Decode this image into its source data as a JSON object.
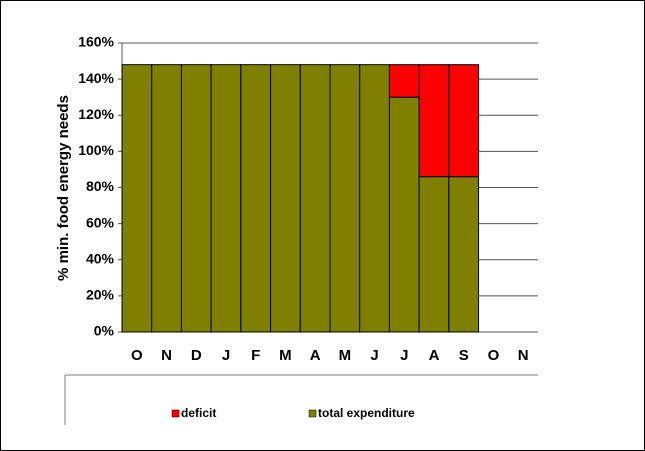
{
  "chart_data": {
    "type": "stacked_bar",
    "y_label": "% min. food energy needs",
    "categories": [
      "O",
      "N",
      "D",
      "J",
      "F",
      "M",
      "A",
      "M",
      "J",
      "J",
      "A",
      "S",
      "O",
      "N"
    ],
    "series": [
      {
        "name": "total expenditure",
        "color": "#808000",
        "values": [
          148,
          148,
          148,
          148,
          148,
          148,
          148,
          148,
          148,
          130,
          86,
          86,
          null,
          null
        ]
      },
      {
        "name": "deficit",
        "color": "#ff0000",
        "values": [
          null,
          null,
          null,
          null,
          null,
          null,
          null,
          null,
          null,
          18,
          62,
          62,
          null,
          null
        ]
      }
    ],
    "ylim": [
      0,
      160
    ],
    "yticks": [
      {
        "value": 0,
        "label": "0%"
      },
      {
        "value": 20,
        "label": "20%"
      },
      {
        "value": 40,
        "label": "40%"
      },
      {
        "value": 60,
        "label": "60%"
      },
      {
        "value": 80,
        "label": "80%"
      },
      {
        "value": 100,
        "label": "100%"
      },
      {
        "value": 120,
        "label": "120%"
      },
      {
        "value": 140,
        "label": "140%"
      },
      {
        "value": 160,
        "label": "160%"
      }
    ],
    "grid": true,
    "legend_position": "bottom"
  }
}
